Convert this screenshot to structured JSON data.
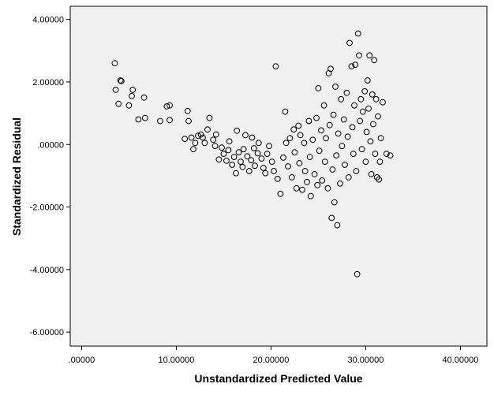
{
  "chart_data": {
    "type": "scatter",
    "title": "",
    "xlabel": "Unstandardized Predicted Value",
    "ylabel": "Standardized Residual",
    "xlim": [
      -1.2,
      42.8
    ],
    "ylim": [
      -6.45,
      4.42
    ],
    "xticks": [
      0,
      10,
      20,
      30,
      40
    ],
    "yticks": [
      -6,
      -4,
      -2,
      0,
      2,
      4
    ],
    "xtick_labels": [
      ".00000",
      "10.00000",
      "20.00000",
      "30.00000",
      "40.00000"
    ],
    "ytick_labels": [
      "-6.00000",
      "-4.00000",
      "-2.00000",
      ".00000",
      "2.00000",
      "4.00000"
    ],
    "grid": false,
    "plot_background": "#f0f0f0",
    "marker": "open-circle",
    "points": [
      [
        3.5,
        2.6
      ],
      [
        3.6,
        1.75
      ],
      [
        3.9,
        1.3
      ],
      [
        4.1,
        2.05
      ],
      [
        4.2,
        2.03
      ],
      [
        5.0,
        1.25
      ],
      [
        5.3,
        1.55
      ],
      [
        5.4,
        1.75
      ],
      [
        6.0,
        0.8
      ],
      [
        6.6,
        1.5
      ],
      [
        6.7,
        0.85
      ],
      [
        8.3,
        0.75
      ],
      [
        9.0,
        1.22
      ],
      [
        9.3,
        1.25
      ],
      [
        9.3,
        0.78
      ],
      [
        10.9,
        0.18
      ],
      [
        11.2,
        1.07
      ],
      [
        11.3,
        0.75
      ],
      [
        11.6,
        0.22
      ],
      [
        11.8,
        -0.15
      ],
      [
        12.0,
        0.05
      ],
      [
        12.3,
        0.28
      ],
      [
        12.6,
        0.32
      ],
      [
        12.8,
        0.22
      ],
      [
        13.0,
        0.05
      ],
      [
        13.3,
        0.48
      ],
      [
        13.5,
        0.85
      ],
      [
        13.9,
        0.15
      ],
      [
        14.1,
        -0.05
      ],
      [
        14.2,
        0.32
      ],
      [
        14.5,
        -0.48
      ],
      [
        14.8,
        -0.1
      ],
      [
        15.0,
        -0.3
      ],
      [
        15.3,
        -0.52
      ],
      [
        15.5,
        -0.18
      ],
      [
        15.6,
        0.1
      ],
      [
        15.9,
        -0.65
      ],
      [
        16.1,
        -0.4
      ],
      [
        16.3,
        -0.92
      ],
      [
        16.4,
        0.44
      ],
      [
        16.6,
        -0.25
      ],
      [
        16.8,
        -0.55
      ],
      [
        17.0,
        -0.72
      ],
      [
        17.1,
        -0.15
      ],
      [
        17.3,
        0.3
      ],
      [
        17.5,
        -0.38
      ],
      [
        17.7,
        -0.85
      ],
      [
        17.9,
        -0.5
      ],
      [
        18.0,
        0.22
      ],
      [
        18.2,
        -0.12
      ],
      [
        18.3,
        -0.68
      ],
      [
        18.6,
        -0.28
      ],
      [
        18.7,
        0.05
      ],
      [
        19.0,
        -0.45
      ],
      [
        19.2,
        -0.75
      ],
      [
        19.4,
        -0.92
      ],
      [
        19.6,
        -0.3
      ],
      [
        19.8,
        -0.05
      ],
      [
        20.1,
        -0.55
      ],
      [
        20.3,
        -0.85
      ],
      [
        20.5,
        2.5
      ],
      [
        20.7,
        -1.1
      ],
      [
        21.0,
        -1.58
      ],
      [
        21.3,
        -0.42
      ],
      [
        21.5,
        1.05
      ],
      [
        21.6,
        0.05
      ],
      [
        21.8,
        -0.7
      ],
      [
        22.0,
        0.2
      ],
      [
        22.2,
        -1.05
      ],
      [
        22.4,
        0.48
      ],
      [
        22.5,
        -0.25
      ],
      [
        22.7,
        -1.4
      ],
      [
        22.9,
        0.6
      ],
      [
        23.0,
        -0.6
      ],
      [
        23.1,
        0.3
      ],
      [
        23.3,
        -1.45
      ],
      [
        23.5,
        0.05
      ],
      [
        23.6,
        -0.85
      ],
      [
        23.8,
        -1.2
      ],
      [
        24.0,
        0.75
      ],
      [
        24.1,
        -0.4
      ],
      [
        24.2,
        -1.65
      ],
      [
        24.4,
        0.15
      ],
      [
        24.6,
        -0.95
      ],
      [
        24.8,
        0.85
      ],
      [
        24.9,
        -1.3
      ],
      [
        25.0,
        1.8
      ],
      [
        25.1,
        -0.2
      ],
      [
        25.3,
        0.45
      ],
      [
        25.4,
        -1.15
      ],
      [
        25.6,
        1.25
      ],
      [
        25.7,
        -0.55
      ],
      [
        25.8,
        0.2
      ],
      [
        26.0,
        -1.4
      ],
      [
        26.1,
        2.28
      ],
      [
        26.2,
        0.62
      ],
      [
        26.3,
        2.42
      ],
      [
        26.4,
        -2.35
      ],
      [
        26.5,
        -0.8
      ],
      [
        26.6,
        0.95
      ],
      [
        26.7,
        -1.85
      ],
      [
        26.8,
        1.85
      ],
      [
        26.9,
        -0.35
      ],
      [
        27.0,
        -2.58
      ],
      [
        27.1,
        0.35
      ],
      [
        27.3,
        -1.25
      ],
      [
        27.4,
        1.45
      ],
      [
        27.5,
        -0.05
      ],
      [
        27.7,
        0.8
      ],
      [
        27.8,
        -0.65
      ],
      [
        28.0,
        1.65
      ],
      [
        28.1,
        0.25
      ],
      [
        28.2,
        -1.05
      ],
      [
        28.3,
        3.25
      ],
      [
        28.5,
        2.5
      ],
      [
        28.6,
        0.55
      ],
      [
        28.7,
        -0.3
      ],
      [
        28.8,
        1.25
      ],
      [
        28.9,
        2.55
      ],
      [
        29.0,
        -0.85
      ],
      [
        29.1,
        -4.15
      ],
      [
        29.2,
        3.55
      ],
      [
        29.3,
        2.85
      ],
      [
        29.4,
        0.75
      ],
      [
        29.5,
        1.45
      ],
      [
        29.6,
        -0.15
      ],
      [
        29.7,
        1.05
      ],
      [
        29.9,
        1.7
      ],
      [
        30.0,
        -0.55
      ],
      [
        30.1,
        0.4
      ],
      [
        30.2,
        2.05
      ],
      [
        30.3,
        1.15
      ],
      [
        30.4,
        2.85
      ],
      [
        30.5,
        0.1
      ],
      [
        30.6,
        -0.95
      ],
      [
        30.7,
        1.6
      ],
      [
        30.8,
        0.65
      ],
      [
        30.9,
        2.7
      ],
      [
        31.0,
        -0.3
      ],
      [
        31.1,
        1.45
      ],
      [
        31.2,
        -1.05
      ],
      [
        31.3,
        0.9
      ],
      [
        31.4,
        -1.12
      ],
      [
        31.5,
        -0.55
      ],
      [
        31.6,
        0.2
      ],
      [
        31.8,
        1.35
      ],
      [
        32.2,
        -0.3
      ],
      [
        32.6,
        -0.35
      ]
    ]
  }
}
